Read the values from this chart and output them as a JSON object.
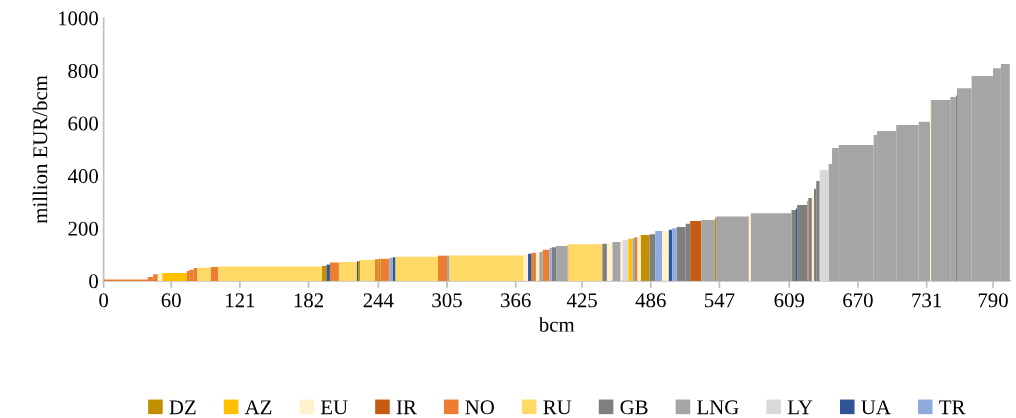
{
  "chart_data": {
    "type": "histogram",
    "xlabel": "bcm",
    "ylabel": "million EUR/bcm",
    "bins": [
      0,
      39,
      44,
      48,
      52,
      74,
      76,
      80,
      83,
      95,
      102,
      194,
      198,
      201,
      209,
      225,
      226,
      228,
      241,
      244,
      246,
      254,
      257,
      259,
      297,
      305,
      307,
      373,
      377,
      380,
      384,
      387,
      390,
      396,
      398,
      402,
      412,
      413,
      443,
      447,
      452,
      459,
      461,
      466,
      470,
      472,
      474,
      477,
      485,
      490,
      496,
      502,
      505,
      509,
      517,
      521,
      531,
      543,
      544,
      573,
      575,
      611,
      615,
      616,
      625,
      626,
      629,
      631,
      633,
      636,
      644,
      647,
      653,
      684,
      687,
      704,
      724,
      734,
      735,
      752,
      757,
      758,
      771,
      790,
      797,
      805
    ],
    "series": [
      {
        "name": "DZ",
        "color": "#bf9000",
        "values": [
          null,
          null,
          null,
          null,
          null,
          null,
          null,
          null,
          null,
          null,
          null,
          57,
          null,
          null,
          null,
          null,
          76,
          null,
          null,
          84,
          null,
          null,
          null,
          null,
          null,
          null,
          null,
          null,
          null,
          null,
          null,
          null,
          null,
          null,
          null,
          null,
          null,
          null,
          null,
          null,
          null,
          null,
          null,
          null,
          null,
          null,
          null,
          175,
          null,
          null,
          null,
          null,
          null,
          null,
          null,
          null,
          null,
          240,
          null,
          null,
          null,
          null,
          null,
          null,
          null,
          null,
          null,
          null,
          null,
          null,
          null,
          null,
          null,
          null,
          null,
          null,
          null,
          null,
          null,
          null,
          null,
          null,
          null,
          null,
          null
        ]
      },
      {
        "name": "AZ",
        "color": "#ffc000",
        "values": [
          null,
          null,
          null,
          null,
          30,
          null,
          null,
          null,
          null,
          null,
          null,
          null,
          null,
          null,
          null,
          null,
          null,
          null,
          null,
          null,
          null,
          null,
          null,
          null,
          null,
          null,
          null,
          null,
          null,
          null,
          null,
          null,
          null,
          null,
          null,
          null,
          null,
          null,
          null,
          null,
          null,
          null,
          null,
          160,
          null,
          null,
          null,
          null,
          null,
          null,
          null,
          null,
          null,
          null,
          null,
          null,
          null,
          null,
          null,
          null,
          null,
          null,
          null,
          null,
          null,
          null,
          null,
          null,
          null,
          null,
          null,
          null,
          null,
          null,
          null,
          null,
          null,
          null,
          null,
          null,
          null,
          null,
          null,
          null,
          null
        ]
      },
      {
        "name": "EU",
        "color": "#fff2cc",
        "values": [
          null,
          null,
          null,
          30,
          null,
          null,
          null,
          null,
          null,
          null,
          null,
          null,
          null,
          null,
          null,
          null,
          null,
          null,
          null,
          null,
          null,
          null,
          null,
          null,
          null,
          null,
          null,
          100,
          null,
          null,
          108,
          null,
          null,
          null,
          null,
          null,
          null,
          null,
          null,
          145,
          null,
          152,
          null,
          null,
          null,
          null,
          170,
          null,
          null,
          null,
          190,
          null,
          null,
          null,
          null,
          null,
          null,
          null,
          null,
          250,
          null,
          null,
          null,
          null,
          null,
          null,
          330,
          null,
          null,
          null,
          null,
          null,
          null,
          null,
          null,
          null,
          null,
          688,
          null,
          null,
          null,
          null,
          null,
          null,
          null
        ]
      },
      {
        "name": "IR",
        "color": "#c55a11",
        "values": [
          null,
          null,
          null,
          null,
          null,
          null,
          null,
          null,
          null,
          null,
          null,
          null,
          null,
          null,
          null,
          null,
          null,
          null,
          null,
          null,
          null,
          null,
          null,
          null,
          null,
          null,
          null,
          null,
          null,
          null,
          null,
          null,
          null,
          null,
          null,
          null,
          null,
          null,
          null,
          null,
          null,
          null,
          null,
          null,
          null,
          null,
          null,
          null,
          null,
          null,
          null,
          null,
          null,
          null,
          null,
          228,
          null,
          null,
          null,
          null,
          null,
          null,
          null,
          null,
          null,
          null,
          null,
          null,
          null,
          null,
          null,
          null,
          null,
          null,
          null,
          null,
          null,
          null,
          null,
          null,
          null,
          null,
          null,
          null,
          null
        ]
      },
      {
        "name": "NO",
        "color": "#ed7d31",
        "values": [
          5,
          15,
          25,
          null,
          null,
          38,
          42,
          49,
          null,
          53,
          null,
          null,
          null,
          70,
          null,
          null,
          null,
          null,
          82,
          null,
          84,
          null,
          null,
          null,
          96,
          null,
          null,
          null,
          null,
          107,
          null,
          null,
          118,
          null,
          null,
          null,
          137,
          null,
          null,
          null,
          null,
          null,
          null,
          null,
          null,
          166,
          null,
          null,
          null,
          null,
          null,
          null,
          null,
          null,
          null,
          null,
          null,
          null,
          null,
          null,
          null,
          null,
          null,
          null,
          305,
          null,
          null,
          null,
          null,
          null,
          null,
          null,
          null,
          null,
          null,
          null,
          null,
          null,
          null,
          null,
          null,
          null,
          null,
          null,
          null
        ]
      },
      {
        "name": "RU",
        "color": "#ffd966",
        "values": [
          null,
          null,
          null,
          null,
          null,
          null,
          null,
          null,
          50,
          null,
          55,
          null,
          null,
          null,
          72,
          null,
          null,
          80,
          null,
          null,
          null,
          null,
          null,
          92,
          null,
          null,
          97,
          null,
          null,
          null,
          null,
          null,
          null,
          null,
          null,
          null,
          null,
          139,
          null,
          null,
          null,
          null,
          null,
          null,
          null,
          null,
          null,
          null,
          null,
          null,
          null,
          null,
          null,
          null,
          null,
          null,
          null,
          null,
          null,
          null,
          null,
          null,
          null,
          null,
          null,
          null,
          null,
          null,
          null,
          null,
          null,
          null,
          null,
          null,
          null,
          null,
          null,
          null,
          null,
          null,
          null,
          null,
          null,
          null,
          null
        ]
      },
      {
        "name": "GB",
        "color": "#7f7f7f",
        "values": [
          null,
          null,
          null,
          null,
          null,
          null,
          null,
          null,
          null,
          null,
          null,
          null,
          null,
          null,
          null,
          null,
          null,
          null,
          null,
          null,
          null,
          null,
          null,
          null,
          null,
          null,
          null,
          null,
          null,
          null,
          null,
          null,
          null,
          null,
          128,
          null,
          null,
          null,
          141,
          null,
          null,
          null,
          null,
          null,
          null,
          null,
          null,
          null,
          177,
          null,
          null,
          null,
          null,
          205,
          217,
          null,
          null,
          null,
          null,
          null,
          null,
          270,
          null,
          289,
          null,
          315,
          null,
          350,
          380,
          null,
          null,
          null,
          null,
          null,
          null,
          null,
          null,
          null,
          null,
          null,
          705,
          null,
          null,
          null,
          null
        ]
      },
      {
        "name": "LNG",
        "color": "#a5a5a5",
        "values": [
          null,
          null,
          null,
          null,
          null,
          null,
          null,
          null,
          null,
          null,
          null,
          null,
          null,
          null,
          null,
          null,
          null,
          null,
          null,
          null,
          null,
          null,
          null,
          null,
          null,
          96,
          null,
          null,
          null,
          null,
          null,
          110,
          null,
          null,
          null,
          133,
          null,
          null,
          null,
          null,
          148,
          null,
          null,
          null,
          null,
          null,
          null,
          null,
          null,
          null,
          null,
          null,
          null,
          null,
          null,
          null,
          232,
          null,
          245,
          null,
          257,
          null,
          null,
          null,
          null,
          null,
          null,
          null,
          null,
          null,
          445,
          505,
          517,
          555,
          570,
          593,
          605,
          null,
          688,
          699,
          null,
          733,
          779,
          809,
          825
        ]
      },
      {
        "name": "LY",
        "color": "#d9d9d9",
        "values": [
          null,
          null,
          null,
          null,
          null,
          null,
          null,
          null,
          null,
          null,
          null,
          null,
          null,
          null,
          null,
          null,
          null,
          null,
          null,
          null,
          null,
          null,
          null,
          null,
          null,
          null,
          null,
          null,
          null,
          null,
          null,
          null,
          null,
          null,
          null,
          null,
          null,
          null,
          null,
          null,
          null,
          null,
          155,
          null,
          null,
          null,
          null,
          null,
          null,
          null,
          null,
          null,
          null,
          null,
          null,
          null,
          null,
          null,
          null,
          null,
          null,
          null,
          null,
          null,
          null,
          null,
          null,
          null,
          null,
          422,
          null,
          null,
          null,
          null,
          null,
          null,
          null,
          null,
          null,
          null,
          null,
          null,
          null,
          null,
          null
        ]
      },
      {
        "name": "UA",
        "color": "#2f5597",
        "values": [
          null,
          null,
          null,
          null,
          null,
          null,
          null,
          null,
          null,
          null,
          null,
          null,
          62,
          null,
          null,
          74,
          null,
          null,
          null,
          null,
          null,
          null,
          90,
          null,
          null,
          null,
          null,
          null,
          103,
          null,
          null,
          null,
          null,
          null,
          null,
          null,
          null,
          null,
          null,
          null,
          null,
          null,
          null,
          null,
          null,
          null,
          null,
          null,
          null,
          null,
          null,
          195,
          null,
          null,
          null,
          null,
          null,
          null,
          null,
          null,
          null,
          null,
          275,
          null,
          null,
          null,
          null,
          null,
          null,
          null,
          null,
          null,
          null,
          null,
          null,
          null,
          null,
          null,
          null,
          null,
          null,
          null,
          null,
          null,
          null
        ]
      },
      {
        "name": "TR",
        "color": "#8faadc",
        "values": [
          null,
          null,
          null,
          null,
          null,
          null,
          null,
          null,
          null,
          null,
          null,
          null,
          null,
          null,
          null,
          null,
          null,
          null,
          null,
          null,
          null,
          88,
          null,
          null,
          null,
          null,
          null,
          null,
          null,
          null,
          null,
          null,
          null,
          125,
          null,
          null,
          null,
          null,
          null,
          null,
          null,
          null,
          null,
          null,
          163,
          null,
          null,
          null,
          null,
          190,
          null,
          null,
          200,
          null,
          null,
          null,
          null,
          null,
          null,
          null,
          null,
          null,
          null,
          null,
          null,
          null,
          null,
          null,
          null,
          null,
          null,
          null,
          null,
          null,
          null,
          null,
          null,
          null,
          null,
          null,
          null,
          null,
          null,
          null,
          null
        ]
      }
    ],
    "xlim": [
      0,
      805
    ],
    "xticks": [
      0,
      60,
      121,
      182,
      244,
      305,
      366,
      425,
      486,
      547,
      609,
      670,
      731,
      790
    ],
    "ylim": [
      0,
      1000
    ],
    "yticks": [
      0,
      200,
      400,
      600,
      800,
      1000
    ],
    "grid": false,
    "legend": "bottom"
  }
}
